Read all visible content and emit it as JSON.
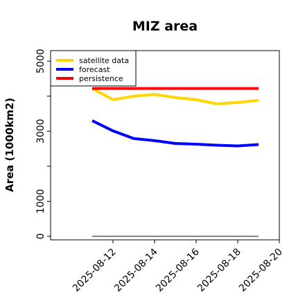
{
  "chart_data": {
    "type": "line",
    "title": "MIZ area",
    "xlabel": "",
    "ylabel": "Area (1000km2)",
    "xlim": [
      "2025-08-09",
      "2025-08-20"
    ],
    "ylim": [
      -100,
      5300
    ],
    "x_ticks": [
      "2025-08-12",
      "2025-08-14",
      "2025-08-16",
      "2025-08-18",
      "2025-08-20"
    ],
    "x_tick_colors": [
      "#228b22",
      "#000000",
      "#000000",
      "#000000",
      "#000000"
    ],
    "y_ticks": [
      0,
      1000,
      3000,
      5000
    ],
    "y_minor_ticks": [
      2000,
      4000
    ],
    "legend_position": "upper-left",
    "grid": false,
    "series": [
      {
        "name": "satellite data",
        "color": "#ffd700",
        "x": [
          "2025-08-11",
          "2025-08-12",
          "2025-08-13",
          "2025-08-14",
          "2025-08-15",
          "2025-08-16",
          "2025-08-17",
          "2025-08-18",
          "2025-08-19"
        ],
        "y": [
          4220,
          3900,
          4000,
          4050,
          3960,
          3900,
          3780,
          3820,
          3880
        ]
      },
      {
        "name": "forecast",
        "color": "#0000ff",
        "x": [
          "2025-08-11",
          "2025-08-12",
          "2025-08-13",
          "2025-08-14",
          "2025-08-15",
          "2025-08-16",
          "2025-08-17",
          "2025-08-18",
          "2025-08-19"
        ],
        "y": [
          3300,
          3010,
          2790,
          2730,
          2650,
          2630,
          2600,
          2580,
          2620
        ]
      },
      {
        "name": "persistence",
        "color": "#ff0000",
        "x": [
          "2025-08-11",
          "2025-08-12",
          "2025-08-13",
          "2025-08-14",
          "2025-08-15",
          "2025-08-16",
          "2025-08-17",
          "2025-08-18",
          "2025-08-19"
        ],
        "y": [
          4220,
          4220,
          4220,
          4220,
          4220,
          4220,
          4220,
          4220,
          4220
        ]
      },
      {
        "color": "#808080",
        "x": [
          "2025-08-11",
          "2025-08-19"
        ],
        "y": [
          0,
          0
        ]
      }
    ]
  }
}
